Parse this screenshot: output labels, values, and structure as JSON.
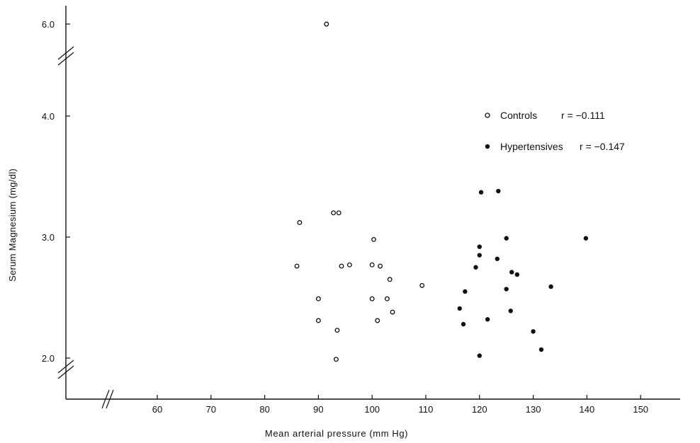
{
  "chart_data": {
    "type": "scatter",
    "xlabel": "Mean arterial pressure (mm Hg)",
    "ylabel": "Serum Magnesium (mg/dl)",
    "xlim": [
      45,
      160
    ],
    "ylim": [
      2.0,
      6.0
    ],
    "x_ticks": [
      "60",
      "70",
      "80",
      "90",
      "100",
      "110",
      "120",
      "130",
      "140",
      "150"
    ],
    "y_ticks": [
      "2.0",
      "3.0",
      "4.0",
      "6.0"
    ],
    "axis_breaks": {
      "x": "between origin and 60",
      "y": [
        "below 2.0",
        "between 4.0 and 6.0"
      ]
    },
    "grid": false,
    "legend_position": "top-right",
    "series": [
      {
        "name": "Controls",
        "marker": "open-circle",
        "annotation": "r = −0.111",
        "points": [
          [
            91.5,
            6.0
          ],
          [
            86.5,
            3.12
          ],
          [
            92.8,
            3.2
          ],
          [
            93.8,
            3.2
          ],
          [
            86.0,
            2.76
          ],
          [
            94.3,
            2.76
          ],
          [
            95.8,
            2.77
          ],
          [
            100.0,
            2.77
          ],
          [
            101.5,
            2.76
          ],
          [
            100.3,
            2.98
          ],
          [
            103.3,
            2.65
          ],
          [
            109.3,
            2.6
          ],
          [
            90.0,
            2.49
          ],
          [
            100.0,
            2.49
          ],
          [
            102.8,
            2.49
          ],
          [
            103.8,
            2.38
          ],
          [
            90.0,
            2.31
          ],
          [
            101.0,
            2.31
          ],
          [
            93.5,
            2.23
          ],
          [
            93.3,
            1.99
          ]
        ]
      },
      {
        "name": "Hypertensives",
        "marker": "filled-circle",
        "annotation": "r = −0.147",
        "points": [
          [
            120.3,
            3.37
          ],
          [
            123.5,
            3.38
          ],
          [
            125.0,
            2.99
          ],
          [
            139.8,
            2.99
          ],
          [
            120.0,
            2.92
          ],
          [
            120.0,
            2.85
          ],
          [
            123.3,
            2.82
          ],
          [
            119.3,
            2.75
          ],
          [
            126.0,
            2.71
          ],
          [
            127.0,
            2.69
          ],
          [
            133.3,
            2.59
          ],
          [
            125.0,
            2.57
          ],
          [
            117.3,
            2.55
          ],
          [
            116.3,
            2.41
          ],
          [
            125.8,
            2.39
          ],
          [
            117.0,
            2.28
          ],
          [
            121.5,
            2.32
          ],
          [
            130.0,
            2.22
          ],
          [
            131.5,
            2.07
          ],
          [
            120.0,
            2.02
          ]
        ]
      }
    ]
  }
}
